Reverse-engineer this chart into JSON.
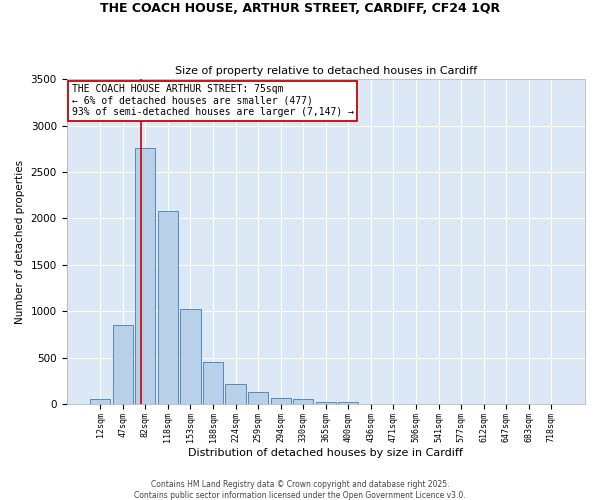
{
  "title_line1": "THE COACH HOUSE, ARTHUR STREET, CARDIFF, CF24 1QR",
  "title_line2": "Size of property relative to detached houses in Cardiff",
  "xlabel": "Distribution of detached houses by size in Cardiff",
  "ylabel": "Number of detached properties",
  "categories": [
    "12sqm",
    "47sqm",
    "82sqm",
    "118sqm",
    "153sqm",
    "188sqm",
    "224sqm",
    "259sqm",
    "294sqm",
    "330sqm",
    "365sqm",
    "400sqm",
    "436sqm",
    "471sqm",
    "506sqm",
    "541sqm",
    "577sqm",
    "612sqm",
    "647sqm",
    "683sqm",
    "718sqm"
  ],
  "values": [
    55,
    850,
    2760,
    2080,
    1030,
    450,
    215,
    135,
    65,
    55,
    30,
    20,
    5,
    5,
    0,
    0,
    0,
    0,
    0,
    0,
    0
  ],
  "bar_color": "#b8d0e8",
  "bar_edge_color": "#5588bb",
  "bg_color": "#dce8f5",
  "grid_color": "#ffffff",
  "annotation_box_text": "THE COACH HOUSE ARTHUR STREET: 75sqm\n← 6% of detached houses are smaller (477)\n93% of semi-detached houses are larger (7,147) →",
  "annotation_box_color": "#cc0000",
  "property_sqm": 75,
  "footer_line1": "Contains HM Land Registry data © Crown copyright and database right 2025.",
  "footer_line2": "Contains public sector information licensed under the Open Government Licence v3.0.",
  "ylim": [
    0,
    3500
  ],
  "yticks": [
    0,
    500,
    1000,
    1500,
    2000,
    2500,
    3000,
    3500
  ],
  "fig_bg": "#ffffff"
}
